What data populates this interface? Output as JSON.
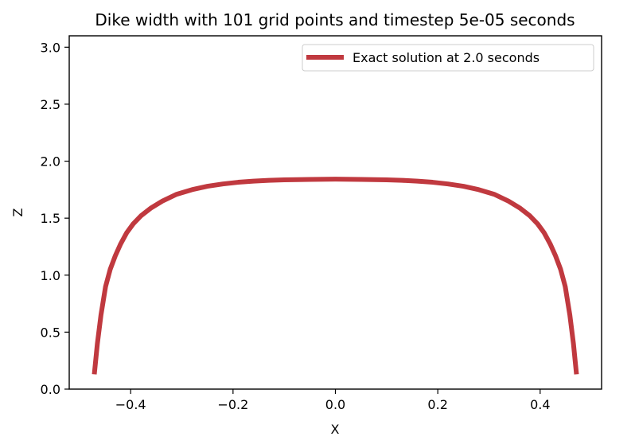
{
  "chart_data": {
    "type": "line",
    "title": "Dike width with 101 grid points and timestep 5e-05 seconds",
    "xlabel": "X",
    "ylabel": "Z",
    "xlim": [
      -0.52,
      0.52
    ],
    "ylim": [
      0.0,
      3.1
    ],
    "xticks": [
      -0.4,
      -0.2,
      0.0,
      0.2,
      0.4
    ],
    "xtick_labels": [
      "−0.4",
      "−0.2",
      "0.0",
      "0.2",
      "0.4"
    ],
    "yticks": [
      0.0,
      0.5,
      1.0,
      1.5,
      2.0,
      2.5,
      3.0
    ],
    "ytick_labels": [
      "0.0",
      "0.5",
      "1.0",
      "1.5",
      "2.0",
      "2.5",
      "3.0"
    ],
    "grid": false,
    "legend_position": "top-right",
    "series": [
      {
        "name": "Exact solution at 2.0 seconds",
        "color": "#c0393f",
        "x": [
          -0.471,
          -0.465,
          -0.458,
          -0.449,
          -0.44,
          -0.43,
          -0.42,
          -0.408,
          -0.395,
          -0.38,
          -0.36,
          -0.338,
          -0.31,
          -0.28,
          -0.25,
          -0.22,
          -0.19,
          -0.16,
          -0.13,
          -0.1,
          -0.05,
          0.0,
          0.05,
          0.1,
          0.13,
          0.16,
          0.19,
          0.22,
          0.25,
          0.28,
          0.31,
          0.338,
          0.36,
          0.38,
          0.395,
          0.408,
          0.42,
          0.43,
          0.44,
          0.449,
          0.458,
          0.465,
          0.471
        ],
        "y": [
          0.13,
          0.4,
          0.65,
          0.9,
          1.05,
          1.17,
          1.27,
          1.37,
          1.45,
          1.52,
          1.59,
          1.65,
          1.71,
          1.75,
          1.78,
          1.8,
          1.815,
          1.825,
          1.832,
          1.836,
          1.84,
          1.842,
          1.84,
          1.836,
          1.832,
          1.825,
          1.815,
          1.8,
          1.78,
          1.75,
          1.71,
          1.65,
          1.59,
          1.52,
          1.45,
          1.37,
          1.27,
          1.17,
          1.05,
          0.9,
          0.65,
          0.4,
          0.13
        ]
      }
    ]
  }
}
